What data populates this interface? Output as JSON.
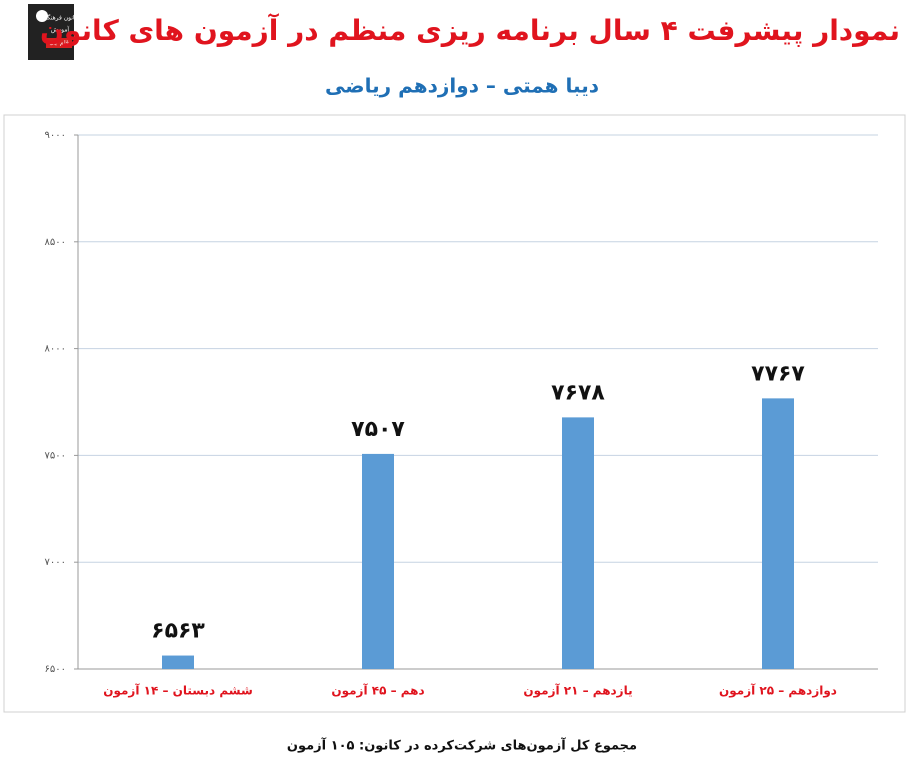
{
  "logo": {
    "lines": [
      "کانون فرهنگی",
      "آموزش",
      "قلم چی"
    ]
  },
  "chart_data": {
    "type": "bar",
    "title": "نمودار پیشرفت ۴ سال برنامه ریزی منظم در آزمون های کانون",
    "subtitle": "دیبا همتی – دوازدهم ریاضی",
    "categories": [
      "ششم دبستان – ۱۴ آزمون",
      "دهم – ۴۵ آزمون",
      "یازدهم – ۲۱ آزمون",
      "دوازدهم – ۲۵ آزمون"
    ],
    "values": [
      6563,
      7507,
      7678,
      7767
    ],
    "value_labels": [
      "۶۵۶۳",
      "۷۵۰۷",
      "۷۶۷۸",
      "۷۷۶۷"
    ],
    "color": "#5b9bd5",
    "ylim": [
      6500,
      9000
    ],
    "yticks": [
      {
        "value": 6500,
        "label": "۶۵۰۰"
      },
      {
        "value": 7000,
        "label": "۷۰۰۰"
      },
      {
        "value": 7500,
        "label": "۷۵۰۰"
      },
      {
        "value": 8000,
        "label": "۸۰۰۰"
      },
      {
        "value": 8500,
        "label": "۸۵۰۰"
      },
      {
        "value": 9000,
        "label": "۹۰۰۰"
      }
    ],
    "grid": true,
    "footer": "مجموع کل آزمون‌های شرکت‌کرده در کانون: ۱۰۵ آزمون"
  }
}
